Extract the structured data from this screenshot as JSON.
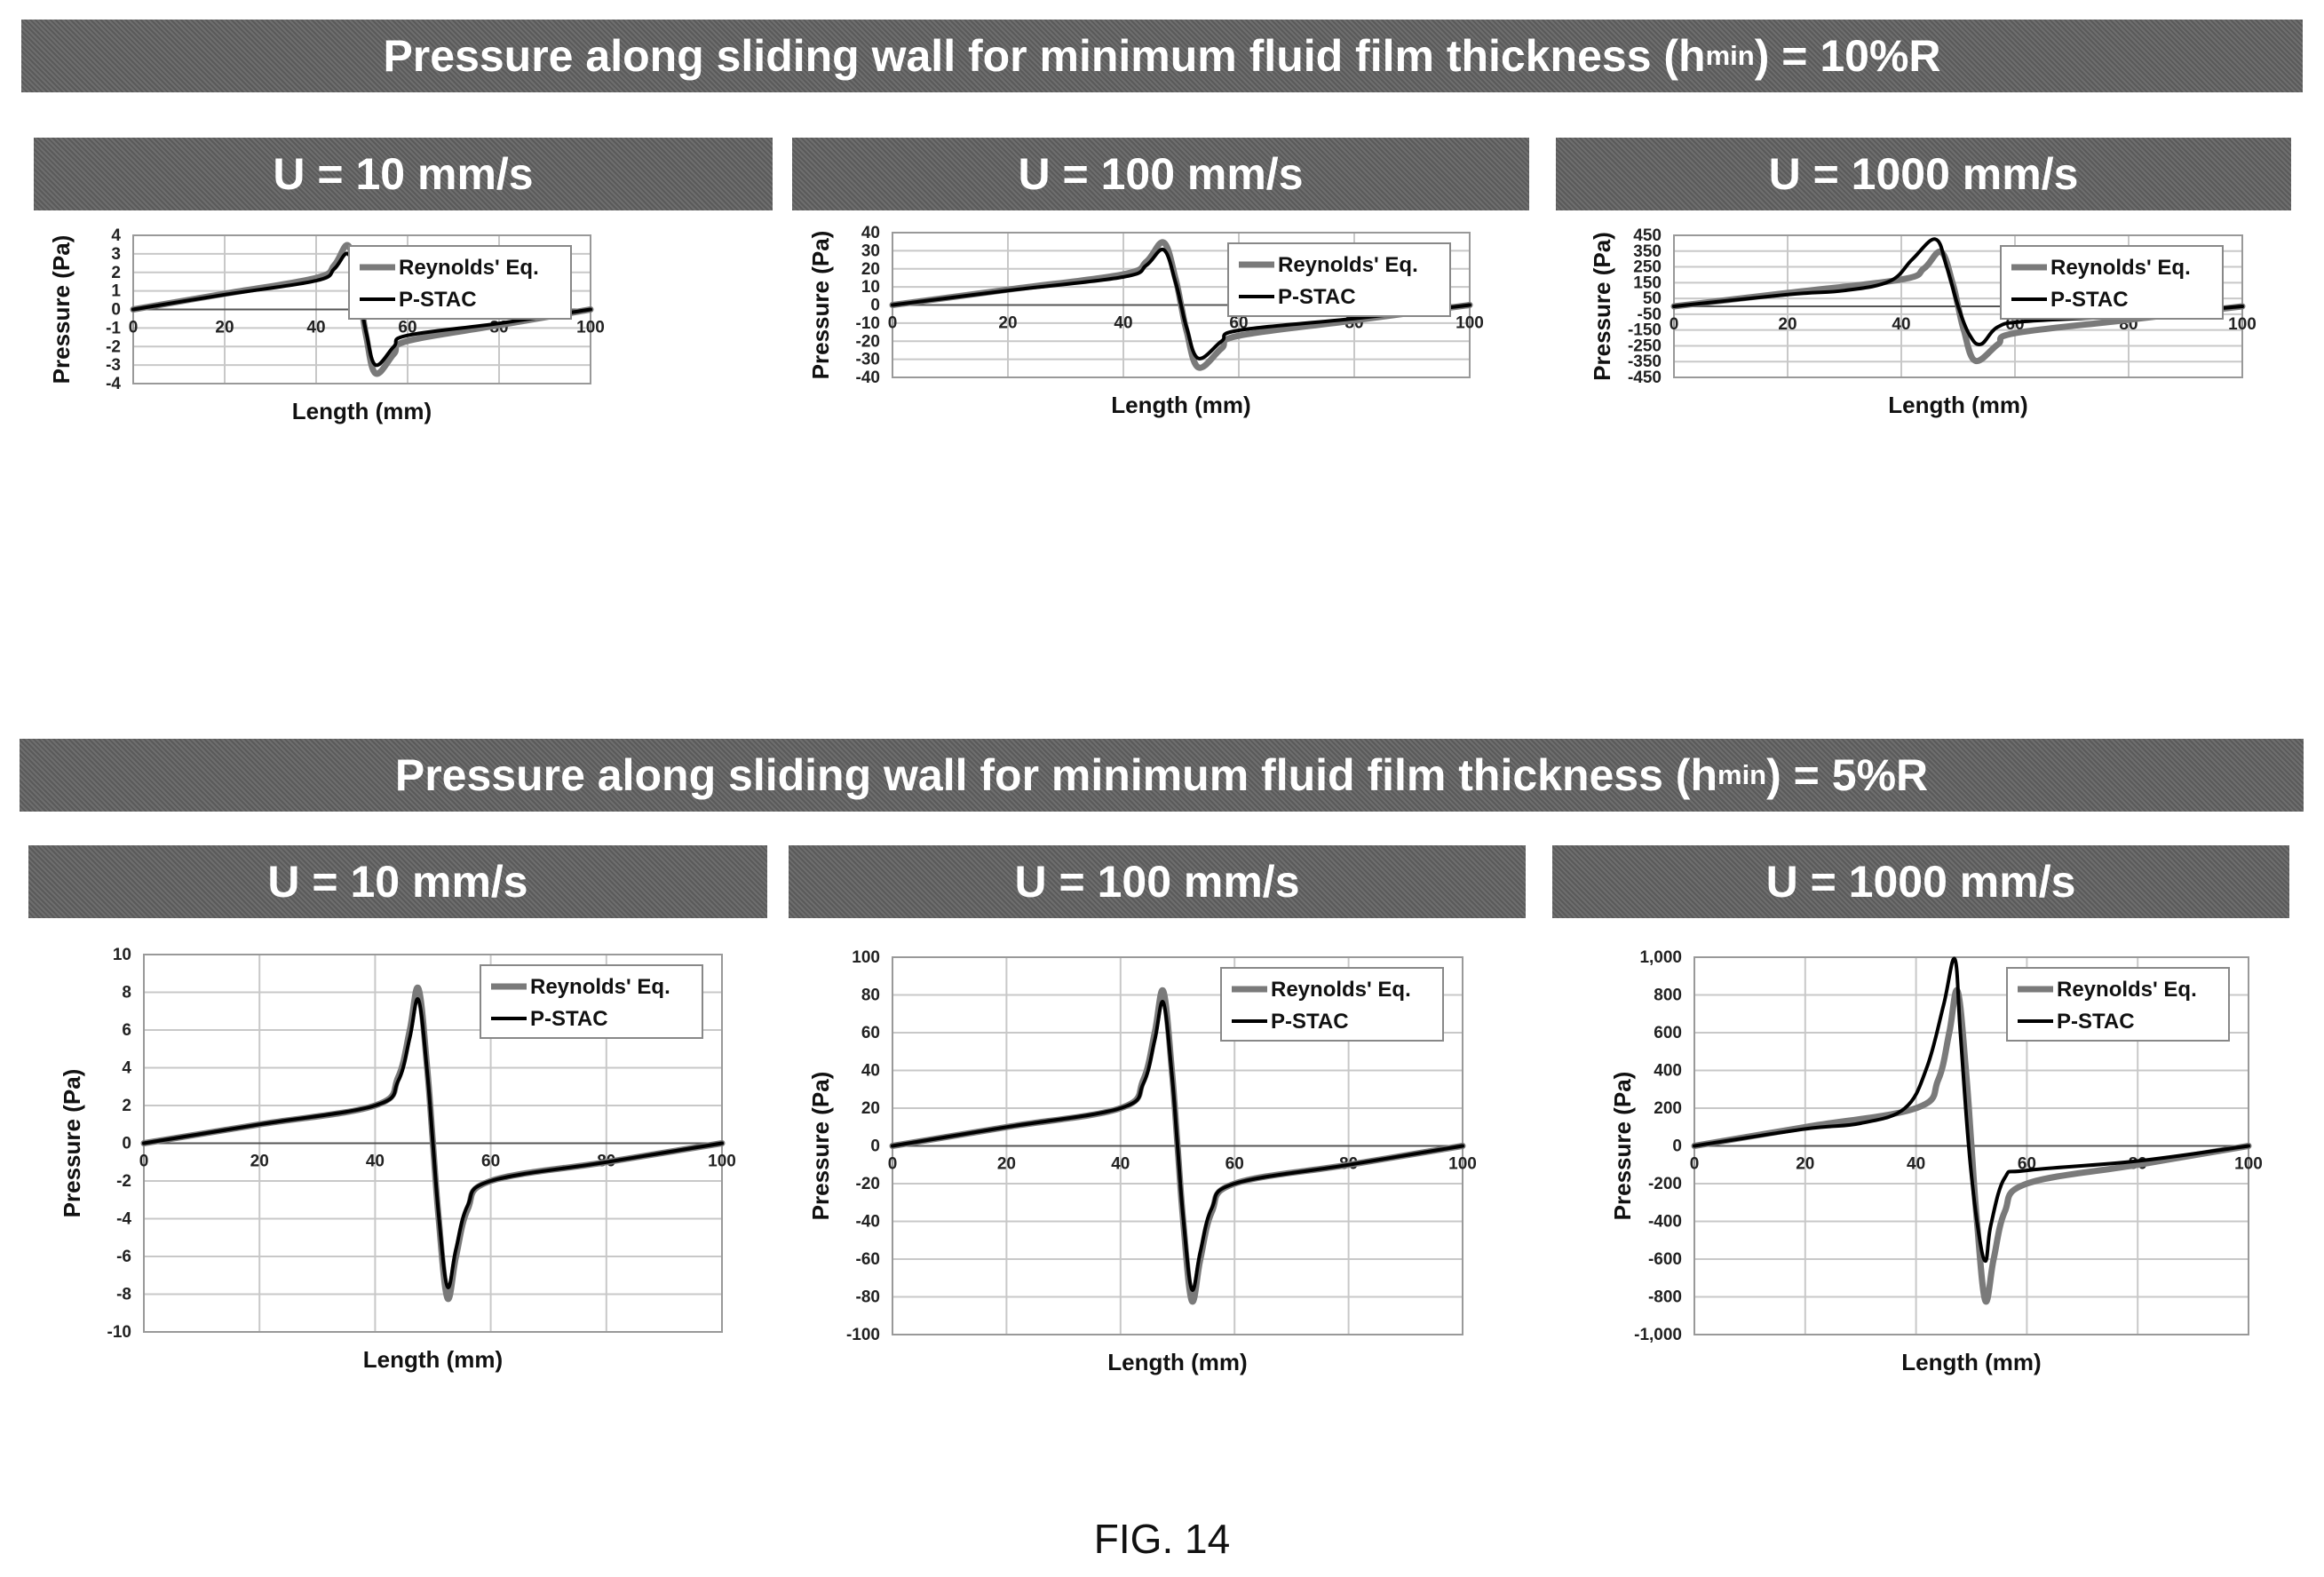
{
  "sections": [
    {
      "title_prefix": "Pressure along sliding wall for minimum fluid film thickness (h",
      "title_sub": "min",
      "title_suffix": ") = 10%R"
    },
    {
      "title_prefix": "Pressure along sliding wall for minimum fluid film thickness (h",
      "title_sub": "min",
      "title_suffix": ") = 5%R"
    }
  ],
  "caption": "FIG. 14",
  "colors": {
    "reynolds": "#7a7a7a",
    "pstac": "#000000",
    "grid": "#c8c8c8"
  },
  "chart_data": [
    {
      "type": "line",
      "panel_title": "U = 10 mm/s",
      "xlabel": "Length (mm)",
      "ylabel": "Pressure (Pa)",
      "xlim": [
        0,
        100
      ],
      "ylim": [
        -4,
        4
      ],
      "xticks": [
        0,
        20,
        40,
        60,
        80,
        100
      ],
      "xtick_labels": [
        "0",
        "20",
        "40",
        "60",
        "80",
        "100"
      ],
      "yticks": [
        -4,
        -3,
        -2,
        -1,
        0,
        1,
        2,
        3,
        4
      ],
      "ytick_labels": [
        "-4",
        "-3",
        "-2",
        "-1",
        "0",
        "1",
        "2",
        "3",
        "4"
      ],
      "legend": "top-right",
      "grid": true,
      "series": [
        {
          "name": "Reynolds' Eq.",
          "x": [
            0,
            20,
            40,
            44,
            47,
            49,
            50,
            51,
            53,
            57,
            60,
            80,
            100
          ],
          "y": [
            0,
            0.85,
            1.7,
            2.4,
            3.45,
            1.5,
            0,
            -1.5,
            -3.45,
            -2.4,
            -1.7,
            -0.85,
            0
          ]
        },
        {
          "name": "P-STAC",
          "x": [
            0,
            20,
            40,
            44,
            47,
            49,
            50,
            51,
            53,
            57,
            60,
            80,
            100
          ],
          "y": [
            0,
            0.8,
            1.55,
            2.2,
            3.0,
            1.3,
            0,
            -1.3,
            -3.0,
            -2.0,
            -1.4,
            -0.75,
            0
          ]
        }
      ]
    },
    {
      "type": "line",
      "panel_title": "U = 100 mm/s",
      "xlabel": "Length (mm)",
      "ylabel": "Pressure (Pa)",
      "xlim": [
        0,
        100
      ],
      "ylim": [
        -40,
        40
      ],
      "xticks": [
        0,
        20,
        40,
        60,
        80,
        100
      ],
      "xtick_labels": [
        "0",
        "20",
        "40",
        "60",
        "80",
        "100"
      ],
      "yticks": [
        -40,
        -30,
        -20,
        -10,
        0,
        10,
        20,
        30,
        40
      ],
      "ytick_labels": [
        "-40",
        "-30",
        "-20",
        "-10",
        "0",
        "10",
        "20",
        "30",
        "40"
      ],
      "legend": "top-right",
      "grid": true,
      "series": [
        {
          "name": "Reynolds' Eq.",
          "x": [
            0,
            20,
            40,
            44,
            47,
            49,
            50,
            51,
            53,
            57,
            60,
            80,
            100
          ],
          "y": [
            0,
            8.5,
            17,
            24,
            34.5,
            15,
            0,
            -15,
            -34.5,
            -24,
            -17,
            -8.5,
            0
          ]
        },
        {
          "name": "P-STAC",
          "x": [
            0,
            20,
            40,
            44,
            47,
            49,
            50,
            51,
            53,
            57,
            60,
            80,
            100
          ],
          "y": [
            0,
            8,
            15.5,
            22,
            30.5,
            13,
            0,
            -13,
            -29.5,
            -20,
            -14,
            -7.5,
            0
          ]
        }
      ]
    },
    {
      "type": "line",
      "panel_title": "U = 1000 mm/s",
      "xlabel": "Length (mm)",
      "ylabel": "Pressure (Pa)",
      "xlim": [
        0,
        100
      ],
      "ylim": [
        -450,
        450
      ],
      "xticks": [
        0,
        20,
        40,
        60,
        80,
        100
      ],
      "xtick_labels": [
        "0",
        "20",
        "40",
        "60",
        "80",
        "100"
      ],
      "yticks": [
        -450,
        -350,
        -250,
        -150,
        -50,
        50,
        150,
        250,
        350,
        450
      ],
      "ytick_labels": [
        "-450",
        "-350",
        "-250",
        "-150",
        "-50",
        "50",
        "150",
        "250",
        "350",
        "450"
      ],
      "legend": "top-right",
      "grid": true,
      "series": [
        {
          "name": "Reynolds' Eq.",
          "x": [
            0,
            20,
            40,
            44,
            47,
            49,
            50,
            51,
            53,
            57,
            60,
            80,
            100
          ],
          "y": [
            0,
            85,
            170,
            240,
            345,
            150,
            0,
            -150,
            -345,
            -240,
            -170,
            -85,
            0
          ]
        },
        {
          "name": "P-STAC",
          "x": [
            0,
            20,
            30,
            38,
            42,
            46,
            48,
            50,
            52,
            54,
            57,
            62,
            80,
            100
          ],
          "y": [
            0,
            75,
            100,
            160,
            300,
            425,
            250,
            0,
            -180,
            -240,
            -130,
            -95,
            -60,
            0
          ]
        }
      ]
    },
    {
      "type": "line",
      "panel_title": "U = 10 mm/s",
      "xlabel": "Length (mm)",
      "ylabel": "Pressure (Pa)",
      "xlim": [
        0,
        100
      ],
      "ylim": [
        -10,
        10
      ],
      "xticks": [
        0,
        20,
        40,
        60,
        80,
        100
      ],
      "xtick_labels": [
        "0",
        "20",
        "40",
        "60",
        "80",
        "100"
      ],
      "yticks": [
        -10,
        -8,
        -6,
        -4,
        -2,
        0,
        2,
        4,
        6,
        8,
        10
      ],
      "ytick_labels": [
        "-10",
        "-8",
        "-6",
        "-4",
        "-2",
        "0",
        "2",
        "4",
        "6",
        "8",
        "10"
      ],
      "legend": "top-right",
      "grid": true,
      "series": [
        {
          "name": "Reynolds' Eq.",
          "x": [
            0,
            20,
            40,
            44,
            46,
            47.5,
            49,
            50,
            51,
            52.5,
            54,
            56,
            60,
            80,
            100
          ],
          "y": [
            0,
            1,
            2,
            3.5,
            6,
            8.2,
            4,
            0,
            -4,
            -8.2,
            -6,
            -3.5,
            -2,
            -1,
            0
          ]
        },
        {
          "name": "P-STAC",
          "x": [
            0,
            20,
            40,
            44,
            46,
            47.5,
            49,
            50,
            51,
            52.5,
            54,
            56,
            60,
            80,
            100
          ],
          "y": [
            0,
            1,
            2,
            3.3,
            5.6,
            7.6,
            3.8,
            0,
            -3.8,
            -7.6,
            -5.6,
            -3.3,
            -2,
            -1,
            0
          ]
        }
      ]
    },
    {
      "type": "line",
      "panel_title": "U = 100 mm/s",
      "xlabel": "Length (mm)",
      "ylabel": "Pressure (Pa)",
      "xlim": [
        0,
        100
      ],
      "ylim": [
        -100,
        100
      ],
      "xticks": [
        0,
        20,
        40,
        60,
        80,
        100
      ],
      "xtick_labels": [
        "0",
        "20",
        "40",
        "60",
        "80",
        "100"
      ],
      "yticks": [
        -100,
        -80,
        -60,
        -40,
        -20,
        0,
        20,
        40,
        60,
        80,
        100
      ],
      "ytick_labels": [
        "-100",
        "-80",
        "-60",
        "-40",
        "-20",
        "0",
        "20",
        "40",
        "60",
        "80",
        "100"
      ],
      "legend": "top-right",
      "grid": true,
      "series": [
        {
          "name": "Reynolds' Eq.",
          "x": [
            0,
            20,
            40,
            44,
            46,
            47.5,
            49,
            50,
            51,
            52.5,
            54,
            56,
            60,
            80,
            100
          ],
          "y": [
            0,
            10,
            20,
            35,
            60,
            82,
            40,
            0,
            -40,
            -82,
            -60,
            -35,
            -20,
            -10,
            0
          ]
        },
        {
          "name": "P-STAC",
          "x": [
            0,
            20,
            40,
            44,
            46,
            47.5,
            49,
            50,
            51,
            52.5,
            54,
            56,
            60,
            80,
            100
          ],
          "y": [
            0,
            10,
            20,
            33,
            56,
            76,
            38,
            0,
            -38,
            -76,
            -56,
            -33,
            -20,
            -10,
            0
          ]
        }
      ]
    },
    {
      "type": "line",
      "panel_title": "U = 1000 mm/s",
      "xlabel": "Length (mm)",
      "ylabel": "Pressure (Pa)",
      "xlim": [
        0,
        100
      ],
      "ylim": [
        -1000,
        1000
      ],
      "xticks": [
        0,
        20,
        40,
        60,
        80,
        100
      ],
      "xtick_labels": [
        "0",
        "20",
        "40",
        "60",
        "80",
        "100"
      ],
      "yticks": [
        -1000,
        -800,
        -600,
        -400,
        -200,
        0,
        200,
        400,
        600,
        800,
        1000
      ],
      "ytick_labels": [
        "-1,000",
        "-800",
        "-600",
        "-400",
        "-200",
        "0",
        "200",
        "400",
        "600",
        "800",
        "1,000"
      ],
      "legend": "top-right",
      "grid": true,
      "series": [
        {
          "name": "Reynolds' Eq.",
          "x": [
            0,
            20,
            40,
            44,
            46,
            47.5,
            49,
            50,
            51,
            52.5,
            54,
            56,
            60,
            80,
            100
          ],
          "y": [
            0,
            100,
            200,
            350,
            600,
            820,
            400,
            0,
            -400,
            -820,
            -600,
            -350,
            -200,
            -100,
            0
          ]
        },
        {
          "name": "P-STAC",
          "x": [
            0,
            20,
            30,
            38,
            42,
            45,
            47,
            48,
            49.5,
            51,
            52.5,
            53.5,
            56,
            60,
            80,
            100
          ],
          "y": [
            0,
            90,
            120,
            200,
            420,
            750,
            990,
            600,
            0,
            -400,
            -610,
            -420,
            -170,
            -130,
            -80,
            0
          ]
        }
      ]
    }
  ]
}
